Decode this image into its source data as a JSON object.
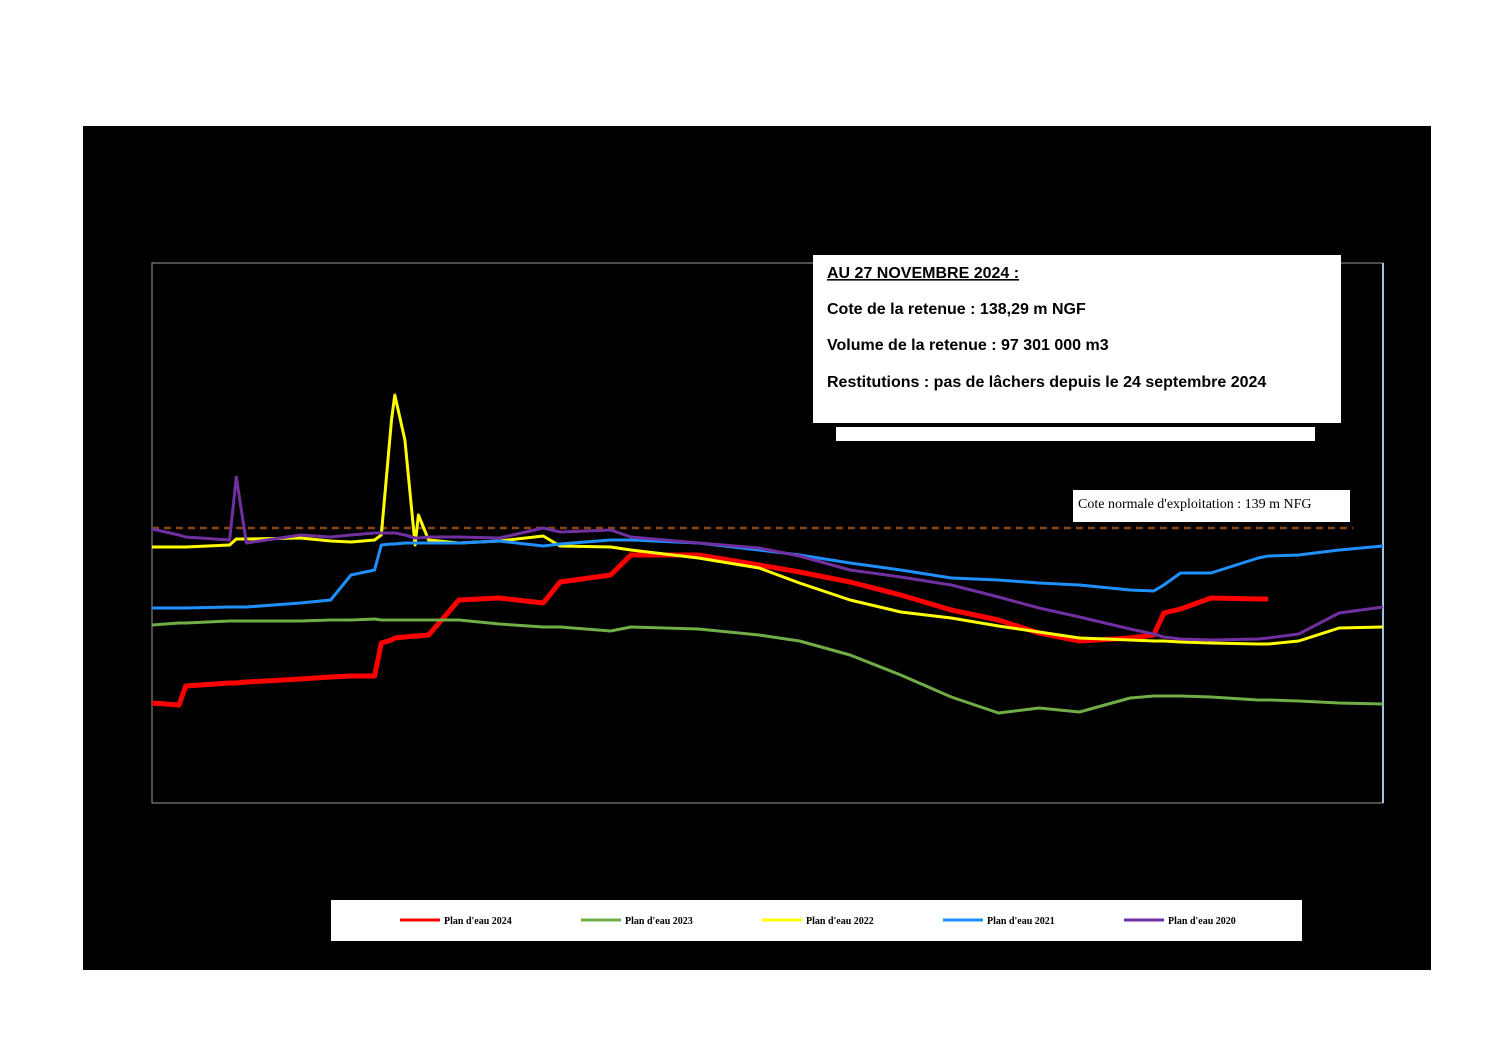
{
  "chart_data": {
    "type": "line",
    "xlim": [
      1,
      366
    ],
    "ylim": [
      136.25,
      141.65
    ],
    "x": [
      1,
      9,
      11,
      24,
      26,
      29,
      45,
      54,
      60,
      67,
      69,
      72,
      73,
      76,
      79,
      80,
      83,
      92,
      104,
      117,
      122,
      137,
      143,
      163,
      181,
      193,
      208,
      223,
      238,
      252,
      264,
      276,
      291,
      298,
      301,
      306,
      315,
      329,
      332,
      341,
      353,
      366
    ],
    "series": [
      {
        "name": "Plan d'eau 2024",
        "color": "#ff0000",
        "width": 5,
        "values": [
          137.25,
          137.23,
          137.42,
          137.45,
          137.45,
          137.46,
          137.49,
          137.51,
          137.52,
          137.52,
          137.85,
          137.88,
          137.9,
          137.91,
          137.92,
          137.92,
          137.93,
          138.28,
          138.3,
          138.25,
          138.46,
          138.53,
          138.73,
          138.73,
          138.63,
          138.56,
          138.46,
          138.33,
          138.18,
          138.08,
          137.95,
          137.87,
          137.9,
          137.93,
          138.15,
          138.19,
          138.3,
          138.29,
          138.29,
          null,
          null,
          null
        ]
      },
      {
        "name": "Plan d'eau 2023",
        "color": "#70ad47",
        "width": 3,
        "values": [
          138.03,
          138.05,
          138.05,
          138.07,
          138.07,
          138.07,
          138.07,
          138.08,
          138.08,
          138.09,
          138.08,
          138.08,
          138.08,
          138.08,
          138.08,
          138.08,
          138.08,
          138.08,
          138.04,
          138.01,
          138.01,
          137.97,
          138.01,
          137.99,
          137.93,
          137.87,
          137.73,
          137.53,
          137.31,
          137.15,
          137.2,
          137.16,
          137.3,
          137.32,
          137.32,
          137.32,
          137.31,
          137.28,
          137.28,
          137.27,
          137.25,
          137.24
        ]
      },
      {
        "name": "Plan d'eau 2022",
        "color": "#ffff00",
        "width": 3,
        "values": [
          138.81,
          138.81,
          138.81,
          138.83,
          138.89,
          138.89,
          138.9,
          138.87,
          138.86,
          138.88,
          138.93,
          140.08,
          140.33,
          139.88,
          138.83,
          139.13,
          138.88,
          138.85,
          138.87,
          138.92,
          138.82,
          138.81,
          138.78,
          138.7,
          138.6,
          138.45,
          138.28,
          138.16,
          138.1,
          138.02,
          137.96,
          137.9,
          137.88,
          137.87,
          137.87,
          137.86,
          137.85,
          137.84,
          137.84,
          137.87,
          138.0,
          138.01
        ]
      },
      {
        "name": "Plan d'eau 2021",
        "color": "#1e90ff",
        "width": 3,
        "values": [
          138.2,
          138.2,
          138.2,
          138.21,
          138.21,
          138.21,
          138.25,
          138.28,
          138.53,
          138.58,
          138.83,
          138.84,
          138.84,
          138.85,
          138.85,
          138.85,
          138.85,
          138.85,
          138.87,
          138.82,
          138.84,
          138.88,
          138.88,
          138.85,
          138.78,
          138.73,
          138.65,
          138.58,
          138.5,
          138.48,
          138.45,
          138.43,
          138.38,
          138.37,
          138.43,
          138.55,
          138.55,
          138.7,
          138.72,
          138.73,
          138.78,
          138.82
        ]
      },
      {
        "name": "Plan d'eau 2020",
        "color": "#7030a0",
        "width": 3,
        "values": [
          138.99,
          138.93,
          138.91,
          138.88,
          139.51,
          138.85,
          138.93,
          138.91,
          138.93,
          138.95,
          138.95,
          138.95,
          138.95,
          138.93,
          138.9,
          138.9,
          138.91,
          138.91,
          138.9,
          139.0,
          138.96,
          138.98,
          138.91,
          138.85,
          138.8,
          138.72,
          138.58,
          138.51,
          138.43,
          138.31,
          138.2,
          138.11,
          137.99,
          137.94,
          137.91,
          137.89,
          137.88,
          137.89,
          137.9,
          137.94,
          138.15,
          138.21
        ]
      }
    ],
    "reference_line": {
      "value": 139,
      "label": "Cote normale d'exploitation : 139 m NFG",
      "color": "#8b4513"
    },
    "info_box": {
      "heading": "AU 27 NOVEMBRE 2024 :",
      "lines": [
        "Cote de la retenue : 138,29 m NGF",
        "Volume de la retenue : 97 301 000 m3",
        "Restitutions : pas de lâchers depuis le 24 septembre 2024"
      ]
    },
    "legend": "bottom"
  }
}
